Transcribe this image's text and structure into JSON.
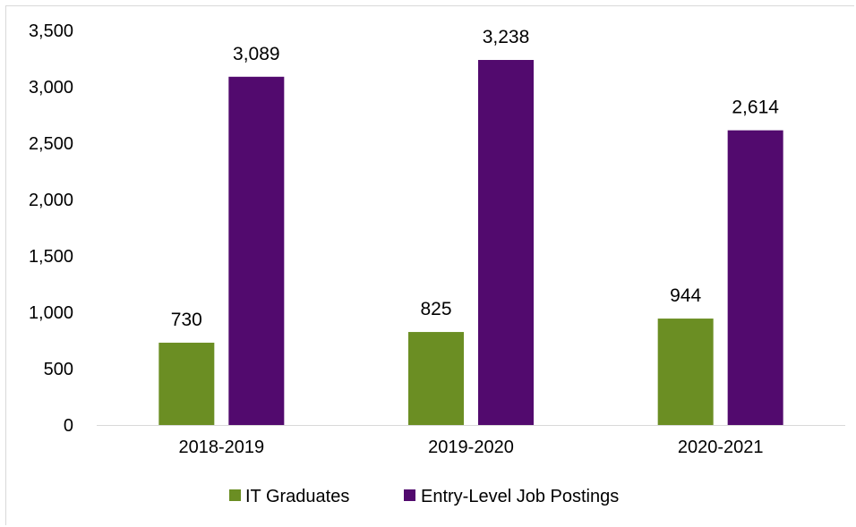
{
  "chart_data": {
    "type": "bar",
    "title": "",
    "xlabel": "",
    "ylabel": "",
    "categories": [
      "2018-2019",
      "2019-2020",
      "2020-2021"
    ],
    "series": [
      {
        "name": "IT Graduates",
        "values": [
          730,
          825,
          944
        ],
        "labels": [
          "730",
          "825",
          "944"
        ],
        "color": "#6b8e23"
      },
      {
        "name": "Entry-Level Job Postings",
        "values": [
          3089,
          3238,
          2614
        ],
        "labels": [
          "3,089",
          "3,238",
          "2,614"
        ],
        "color": "#520a6e"
      }
    ],
    "ylim": [
      0,
      3500
    ],
    "yticks": [
      0,
      500,
      1000,
      1500,
      2000,
      2500,
      3000,
      3500
    ],
    "ytick_labels": [
      "0",
      "500",
      "1,000",
      "1,500",
      "2,000",
      "2,500",
      "3,000",
      "3,500"
    ],
    "grid": false,
    "legend_position": "bottom",
    "axis_color": "#d9d9d9"
  }
}
